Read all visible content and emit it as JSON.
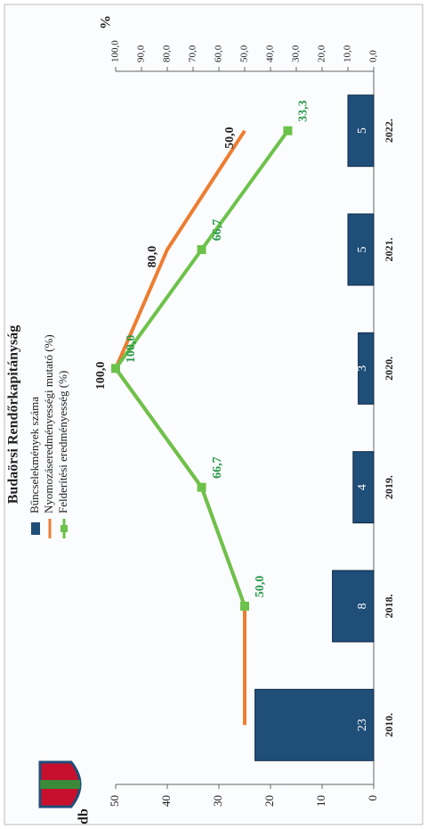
{
  "chart_data": {
    "type": "bar-line",
    "title": "Budaörsi Rendőrkapitányság",
    "ylabel": "db",
    "y2label": "%",
    "categories": [
      "2010.",
      "2018.",
      "2019.",
      "2020.",
      "2021.",
      "2022."
    ],
    "series": [
      {
        "name": "Bűncselekmények száma",
        "type": "bar",
        "color": "#1f4e79",
        "values": [
          23,
          8,
          4,
          3,
          5,
          5
        ]
      },
      {
        "name": "Nyomozáseredményességi mutató (%)",
        "type": "line",
        "axis": "y2",
        "color": "#ed7d31",
        "values": [
          50,
          50,
          66.7,
          100,
          80,
          50
        ],
        "value_labels": [
          null,
          null,
          null,
          "100,0",
          "80,0",
          "50,0"
        ]
      },
      {
        "name": "Felderítési eredményesség (%)",
        "type": "line",
        "axis": "y2",
        "color": "#6cc24a",
        "values": [
          null,
          50,
          66.7,
          100,
          66.7,
          33.3
        ],
        "value_labels": [
          null,
          "50,0",
          "66,7",
          "100,0",
          "66,7",
          "33,3"
        ]
      }
    ],
    "ylim": [
      0,
      50
    ],
    "yticks": [
      0,
      10,
      20,
      30,
      40,
      50
    ],
    "y2lim": [
      0,
      100
    ],
    "y2ticks": [
      {
        "value": 0,
        "label": "0,0"
      },
      {
        "value": 10,
        "label": "10,0"
      },
      {
        "value": 20,
        "label": "20,0"
      },
      {
        "value": 30,
        "label": "30,0"
      },
      {
        "value": 40,
        "label": "40,0"
      },
      {
        "value": 50,
        "label": "50,0"
      },
      {
        "value": 60,
        "label": "60,0"
      },
      {
        "value": 70,
        "label": "70,0"
      },
      {
        "value": 80,
        "label": "80,0"
      },
      {
        "value": 90,
        "label": "90,0"
      },
      {
        "value": 100,
        "label": "100,0"
      }
    ],
    "legend": "top-left"
  }
}
